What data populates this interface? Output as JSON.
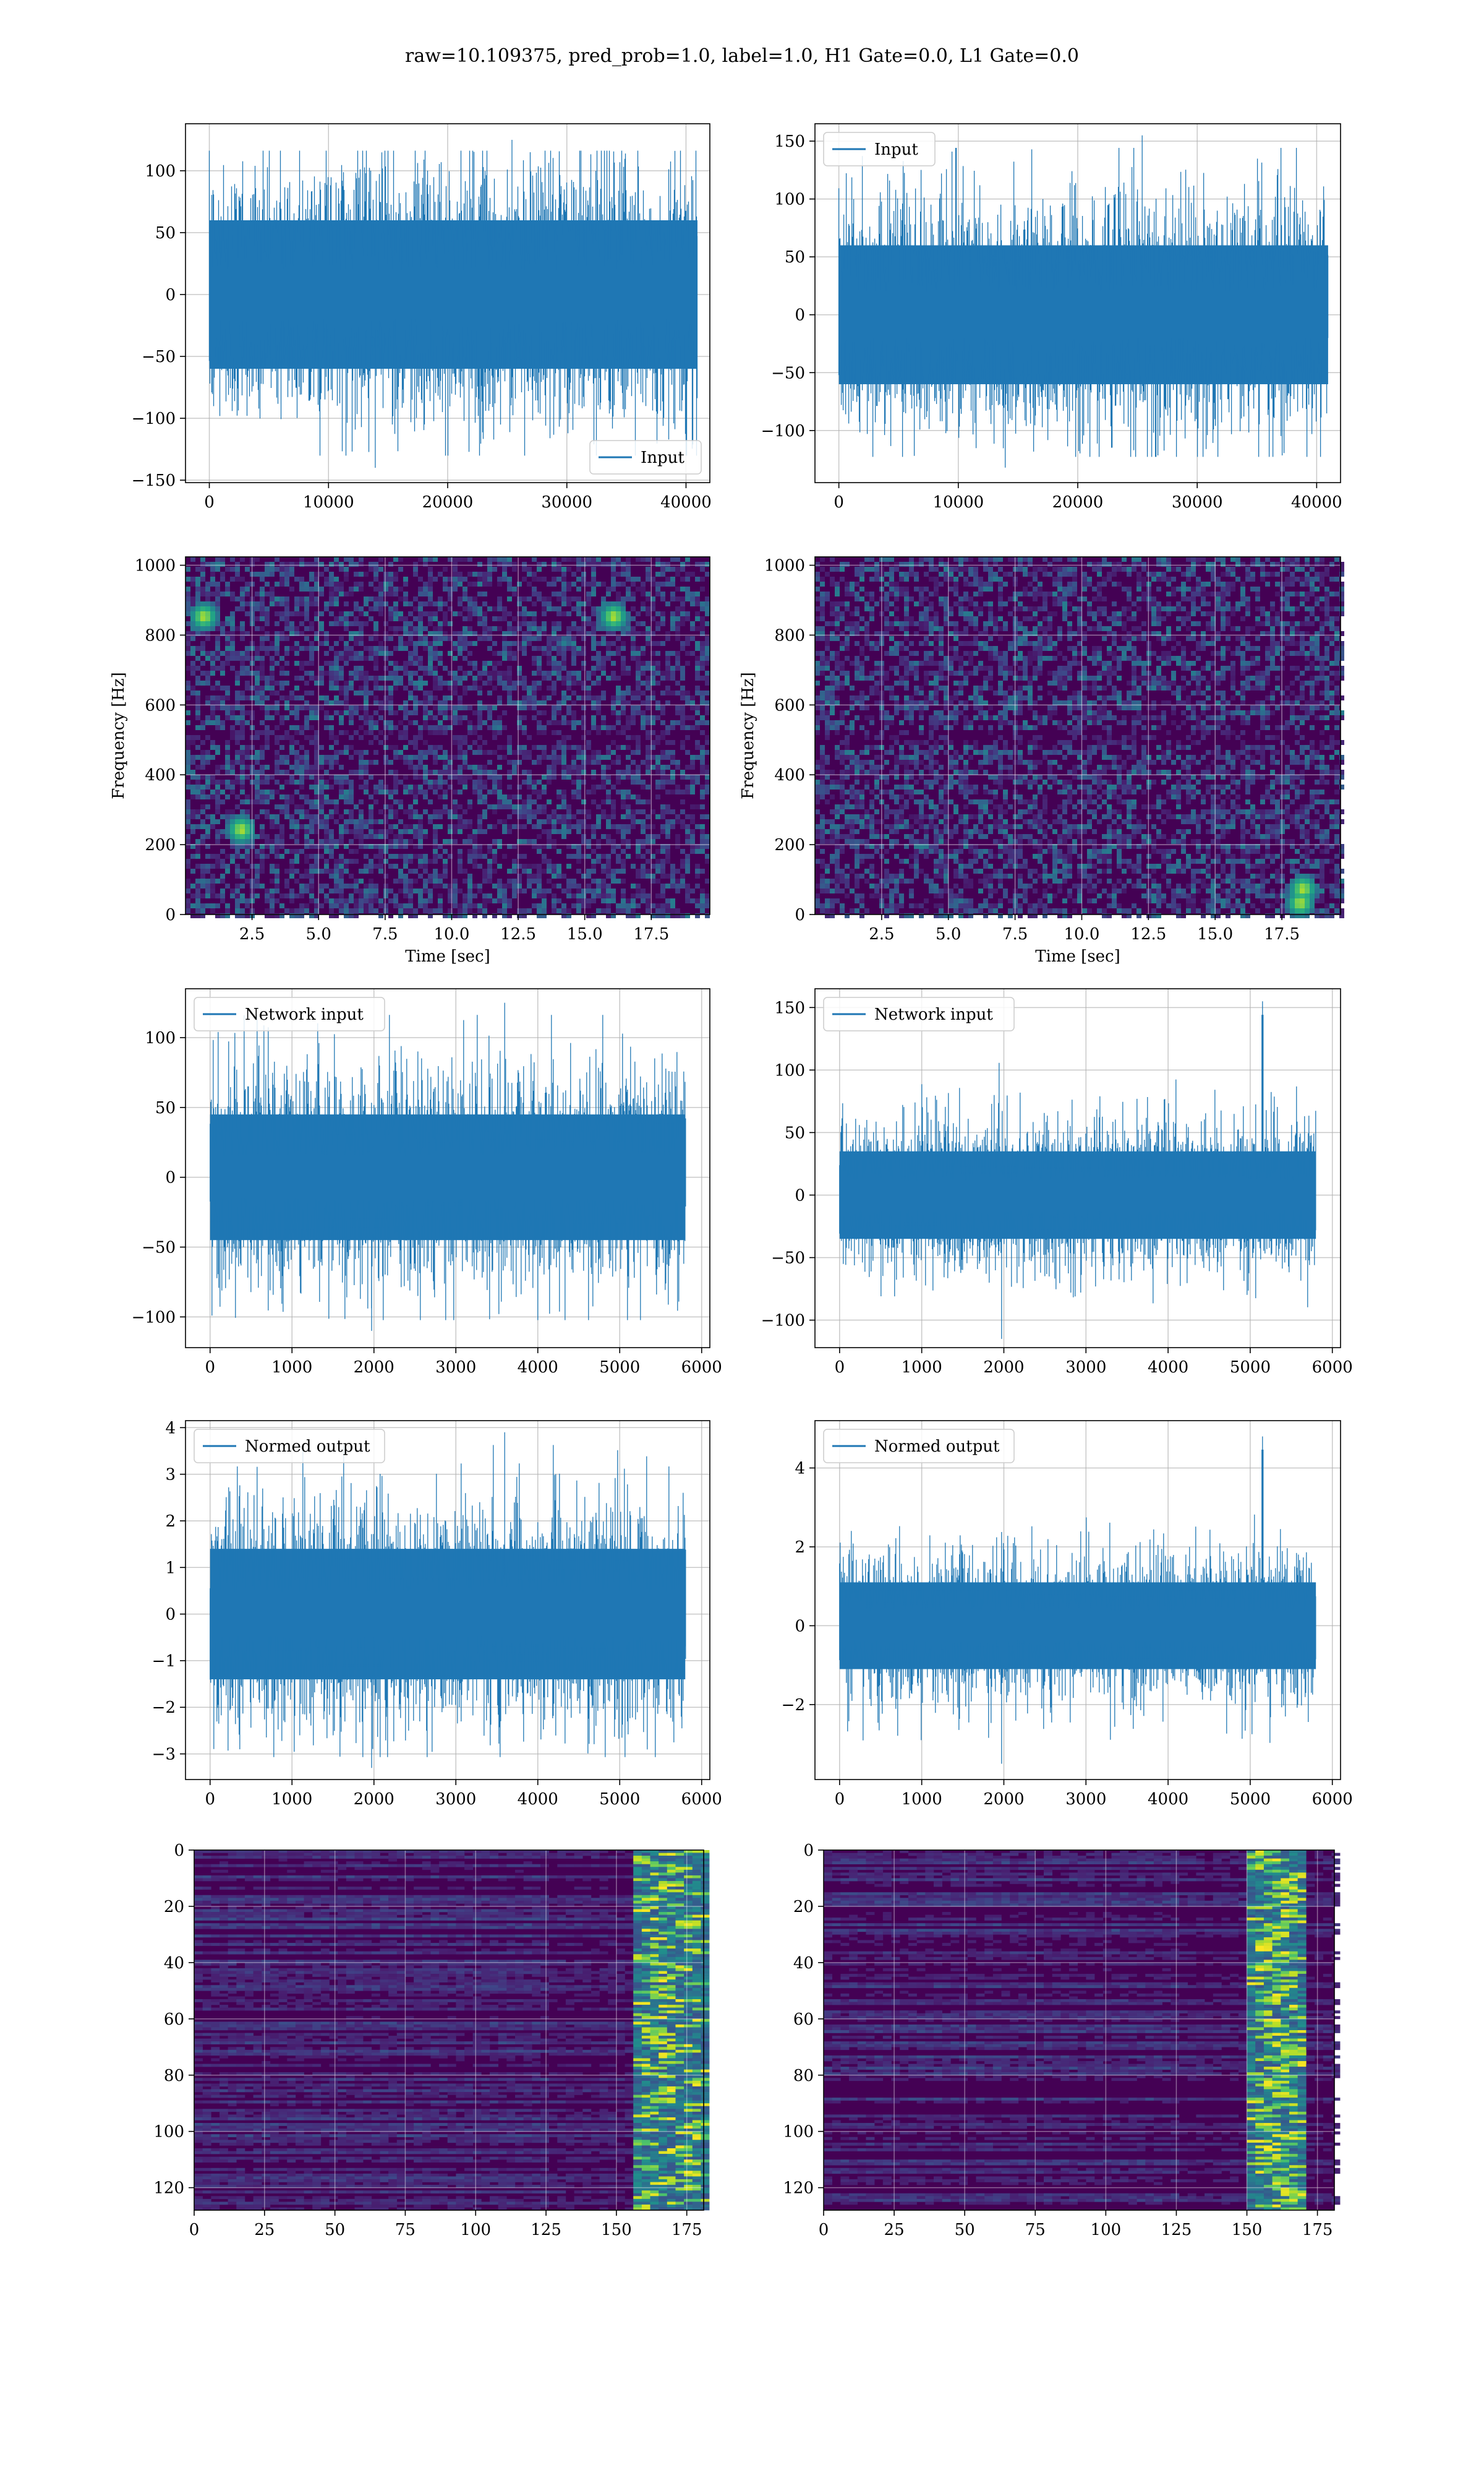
{
  "figure": {
    "suptitle": "raw=10.109375, pred_prob=1.0, label=1.0, H1 Gate=0.0, L1 Gate=0.0"
  },
  "colors": {
    "line": "#1f77b4",
    "grid": "#b0b0b0",
    "viridis_dark": "#440154",
    "viridis_mid": "#3b528b",
    "viridis_teal": "#21918c",
    "viridis_green": "#5ec962",
    "viridis_yellow": "#fde725"
  },
  "chart_data": [
    {
      "id": "h1-input",
      "type": "line",
      "xlim": [
        -2000,
        42000
      ],
      "ylim": [
        -152,
        138
      ],
      "xticks": [
        0,
        10000,
        20000,
        30000,
        40000
      ],
      "yticks": [
        -150,
        -100,
        -50,
        0,
        50,
        100
      ],
      "legend": {
        "label": "Input",
        "loc": "lower-right"
      },
      "series": [
        {
          "name": "Input",
          "x_range": [
            0,
            40960
          ],
          "n_points": 40960,
          "envelope_core": [
            -60,
            60
          ],
          "peaks": [
            125,
            -140
          ]
        }
      ]
    },
    {
      "id": "l1-input",
      "type": "line",
      "xlim": [
        -2000,
        42000
      ],
      "ylim": [
        -145,
        165
      ],
      "xticks": [
        0,
        10000,
        20000,
        30000,
        40000
      ],
      "yticks": [
        -100,
        -50,
        0,
        50,
        100,
        150
      ],
      "legend": {
        "label": "Input",
        "loc": "upper-left"
      },
      "series": [
        {
          "name": "Input",
          "x_range": [
            0,
            40960
          ],
          "n_points": 40960,
          "envelope_core": [
            -60,
            60
          ],
          "peaks": [
            155,
            -132
          ]
        }
      ]
    },
    {
      "id": "h1-spectrogram",
      "type": "heatmap",
      "xlabel": "Time [sec]",
      "ylabel": "Frequency [Hz]",
      "xlim": [
        0,
        19.7
      ],
      "ylim": [
        0,
        1024
      ],
      "xticks": [
        2.5,
        5.0,
        7.5,
        10.0,
        12.5,
        15.0,
        17.5
      ],
      "xtick_labels": [
        "2.5",
        "5.0",
        "7.5",
        "10.0",
        "12.5",
        "15.0",
        "17.5"
      ],
      "yticks": [
        0,
        200,
        400,
        600,
        800,
        1000
      ],
      "colormap": "viridis",
      "hotspots": [
        {
          "t": 2.0,
          "f": 250
        },
        {
          "t": 0.6,
          "f": 860
        },
        {
          "t": 16.0,
          "f": 860
        }
      ]
    },
    {
      "id": "l1-spectrogram",
      "type": "heatmap",
      "xlabel": "Time [sec]",
      "ylabel": "Frequency [Hz]",
      "xlim": [
        0,
        19.7
      ],
      "ylim": [
        0,
        1024
      ],
      "xticks": [
        2.5,
        5.0,
        7.5,
        10.0,
        12.5,
        15.0,
        17.5
      ],
      "xtick_labels": [
        "2.5",
        "5.0",
        "7.5",
        "10.0",
        "12.5",
        "15.0",
        "17.5"
      ],
      "yticks": [
        0,
        200,
        400,
        600,
        800,
        1000
      ],
      "colormap": "viridis",
      "hotspots": [
        {
          "t": 18.1,
          "f": 40
        },
        {
          "t": 18.2,
          "f": 80
        }
      ]
    },
    {
      "id": "h1-network-input",
      "type": "line",
      "xlim": [
        -300,
        6100
      ],
      "ylim": [
        -122,
        135
      ],
      "xticks": [
        0,
        1000,
        2000,
        3000,
        4000,
        5000,
        6000
      ],
      "yticks": [
        -100,
        -50,
        0,
        50,
        100
      ],
      "legend": {
        "label": "Network input",
        "loc": "upper-left"
      },
      "series": [
        {
          "name": "Network input",
          "x_range": [
            0,
            5800
          ],
          "n_points": 5800,
          "envelope_core": [
            -45,
            45
          ],
          "peaks": [
            125,
            -110
          ]
        }
      ]
    },
    {
      "id": "l1-network-input",
      "type": "line",
      "xlim": [
        -300,
        6100
      ],
      "ylim": [
        -122,
        165
      ],
      "xticks": [
        0,
        1000,
        2000,
        3000,
        4000,
        5000,
        6000
      ],
      "yticks": [
        -100,
        -50,
        0,
        50,
        100,
        150
      ],
      "legend": {
        "label": "Network input",
        "loc": "upper-left"
      },
      "series": [
        {
          "name": "Network input",
          "x_range": [
            0,
            5800
          ],
          "n_points": 5800,
          "envelope_core": [
            -35,
            35
          ],
          "peaks": [
            155,
            -115
          ],
          "spike_at_x": 5150
        }
      ]
    },
    {
      "id": "h1-normed-output",
      "type": "line",
      "xlim": [
        -300,
        6100
      ],
      "ylim": [
        -3.55,
        4.15
      ],
      "xticks": [
        0,
        1000,
        2000,
        3000,
        4000,
        5000,
        6000
      ],
      "yticks": [
        -3,
        -2,
        -1,
        0,
        1,
        2,
        3,
        4
      ],
      "legend": {
        "label": "Normed output",
        "loc": "upper-left"
      },
      "series": [
        {
          "name": "Normed output",
          "x_range": [
            0,
            5800
          ],
          "n_points": 5800,
          "envelope_core": [
            -1.4,
            1.4
          ],
          "peaks": [
            3.9,
            -3.3
          ]
        }
      ]
    },
    {
      "id": "l1-normed-output",
      "type": "line",
      "xlim": [
        -300,
        6100
      ],
      "ylim": [
        -3.9,
        5.2
      ],
      "xticks": [
        0,
        1000,
        2000,
        3000,
        4000,
        5000,
        6000
      ],
      "yticks": [
        -2,
        0,
        2,
        4
      ],
      "legend": {
        "label": "Normed output",
        "loc": "upper-left"
      },
      "series": [
        {
          "name": "Normed output",
          "x_range": [
            0,
            5800
          ],
          "n_points": 5800,
          "envelope_core": [
            -1.1,
            1.1
          ],
          "peaks": [
            4.8,
            -3.5
          ],
          "spike_at_x": 5150
        }
      ]
    },
    {
      "id": "h1-feature-map",
      "type": "heatmap",
      "xlim": [
        0,
        181
      ],
      "ylim": [
        128,
        0
      ],
      "xticks": [
        0,
        25,
        50,
        75,
        100,
        125,
        150,
        175
      ],
      "yticks": [
        0,
        20,
        40,
        60,
        80,
        100,
        120
      ],
      "colormap": "viridis",
      "bright_band_x": [
        155,
        181
      ]
    },
    {
      "id": "l1-feature-map",
      "type": "heatmap",
      "xlim": [
        0,
        181
      ],
      "ylim": [
        128,
        0
      ],
      "xticks": [
        0,
        25,
        50,
        75,
        100,
        125,
        150,
        175
      ],
      "yticks": [
        0,
        20,
        40,
        60,
        80,
        100,
        120
      ],
      "colormap": "viridis",
      "bright_band_x": [
        150,
        168
      ]
    }
  ]
}
